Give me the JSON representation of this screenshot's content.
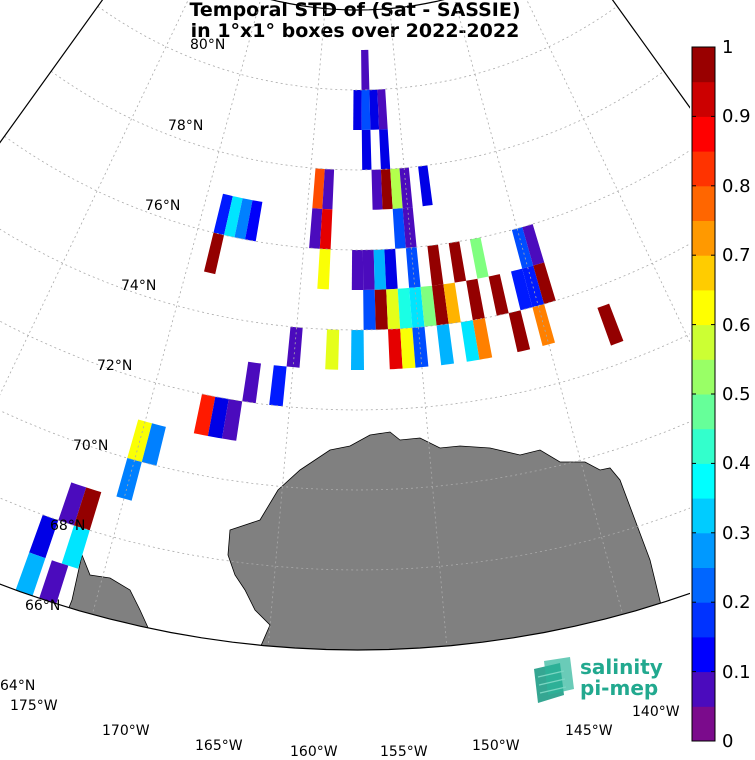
{
  "title": {
    "line1": "Temporal STD of (Sat - SASSIE)",
    "line2": "in 1°x1° boxes over 2022-2022"
  },
  "map": {
    "lat_labels": [
      "80°N",
      "78°N",
      "76°N",
      "74°N",
      "72°N",
      "70°N",
      "68°N",
      "66°N",
      "64°N"
    ],
    "lon_labels": [
      "175°W",
      "170°W",
      "165°W",
      "160°W",
      "155°W",
      "150°W",
      "145°W",
      "140°W"
    ],
    "land_color": "#808080",
    "grid_style": "dotted"
  },
  "colorbar": {
    "ticks": [
      "0",
      "0.1",
      "0.2",
      "0.3",
      "0.4",
      "0.5",
      "0.6",
      "0.7",
      "0.8",
      "0.9",
      "1"
    ],
    "colormap": "jet",
    "levels": 20
  },
  "logo": {
    "line1": "salinity",
    "line2": "pi-mep",
    "color": "#22a98f"
  },
  "boxes": [
    {
      "lat": 78.5,
      "lon": -157,
      "v": 0.05
    },
    {
      "lat": 77.5,
      "lon": -157.5,
      "v": 0.1
    },
    {
      "lat": 77.5,
      "lon": -157,
      "v": 0.2
    },
    {
      "lat": 77.5,
      "lon": -156.5,
      "v": 0.1
    },
    {
      "lat": 77.5,
      "lon": -156,
      "v": 0.05
    },
    {
      "lat": 76.5,
      "lon": -157,
      "v": 0.1
    },
    {
      "lat": 76.5,
      "lon": -156,
      "v": 0.1
    },
    {
      "lat": 75.5,
      "lon": -159.5,
      "v": 0.8
    },
    {
      "lat": 75.5,
      "lon": -159,
      "v": 0.05
    },
    {
      "lat": 75.5,
      "lon": -156.5,
      "v": 0.05
    },
    {
      "lat": 75.5,
      "lon": -156,
      "v": 0.98
    },
    {
      "lat": 75.5,
      "lon": -155.5,
      "v": 0.55
    },
    {
      "lat": 75.5,
      "lon": -155,
      "v": 0.05
    },
    {
      "lat": 75.5,
      "lon": -154,
      "v": 0.1
    },
    {
      "lat": 74.5,
      "lon": -164,
      "v": 0.15
    },
    {
      "lat": 74.5,
      "lon": -163.5,
      "v": 0.35
    },
    {
      "lat": 74.5,
      "lon": -163,
      "v": 0.25
    },
    {
      "lat": 74.5,
      "lon": -162.5,
      "v": 0.12
    },
    {
      "lat": 74.5,
      "lon": -159.5,
      "v": 0.05
    },
    {
      "lat": 74.5,
      "lon": -159,
      "v": 0.9
    },
    {
      "lat": 74.5,
      "lon": -155.5,
      "v": 0.2
    },
    {
      "lat": 74.5,
      "lon": -155,
      "v": 0.05
    },
    {
      "lat": 73.5,
      "lon": -164,
      "v": 0.98
    },
    {
      "lat": 73.5,
      "lon": -159,
      "v": 0.62
    },
    {
      "lat": 73.5,
      "lon": -157.5,
      "v": 0.05
    },
    {
      "lat": 73.5,
      "lon": -157,
      "v": 0.05
    },
    {
      "lat": 73.5,
      "lon": -156.5,
      "v": 0.3
    },
    {
      "lat": 73.5,
      "lon": -156,
      "v": 0.1
    },
    {
      "lat": 73.5,
      "lon": -155,
      "v": 0.2
    },
    {
      "lat": 73.5,
      "lon": -154,
      "v": 0.98
    },
    {
      "lat": 73.5,
      "lon": -153,
      "v": 0.98
    },
    {
      "lat": 73.5,
      "lon": -152,
      "v": 0.5
    },
    {
      "lat": 73.5,
      "lon": -150,
      "v": 0.2
    },
    {
      "lat": 73.5,
      "lon": -149.5,
      "v": 0.05
    },
    {
      "lat": 72.5,
      "lon": -157,
      "v": 0.2
    },
    {
      "lat": 72.5,
      "lon": -156.5,
      "v": 0.98
    },
    {
      "lat": 72.5,
      "lon": -156,
      "v": 0.6
    },
    {
      "lat": 72.5,
      "lon": -155.5,
      "v": 0.4
    },
    {
      "lat": 72.5,
      "lon": -155,
      "v": 0.35
    },
    {
      "lat": 72.5,
      "lon": -154.5,
      "v": 0.5
    },
    {
      "lat": 72.5,
      "lon": -154,
      "v": 0.98
    },
    {
      "lat": 72.5,
      "lon": -153.5,
      "v": 0.7
    },
    {
      "lat": 72.5,
      "lon": -152.5,
      "v": 0.98
    },
    {
      "lat": 72.5,
      "lon": -151.5,
      "v": 0.98
    },
    {
      "lat": 72.5,
      "lon": -150.5,
      "v": 0.15
    },
    {
      "lat": 72.5,
      "lon": -150,
      "v": 0.15
    },
    {
      "lat": 72.5,
      "lon": -149.5,
      "v": 0.98
    },
    {
      "lat": 71.5,
      "lon": -160,
      "v": 0.05
    },
    {
      "lat": 71.5,
      "lon": -158.5,
      "v": 0.6
    },
    {
      "lat": 71.5,
      "lon": -157.5,
      "v": 0.3
    },
    {
      "lat": 71.5,
      "lon": -156,
      "v": 0.9
    },
    {
      "lat": 71.5,
      "lon": -155.5,
      "v": 0.62
    },
    {
      "lat": 71.5,
      "lon": -155,
      "v": 0.2
    },
    {
      "lat": 71.5,
      "lon": -154,
      "v": 0.3
    },
    {
      "lat": 71.5,
      "lon": -153,
      "v": 0.35
    },
    {
      "lat": 71.5,
      "lon": -152.5,
      "v": 0.75
    },
    {
      "lat": 71.5,
      "lon": -151,
      "v": 0.98
    },
    {
      "lat": 71.5,
      "lon": -150,
      "v": 0.75
    },
    {
      "lat": 70.5,
      "lon": -161.5,
      "v": 0.05
    },
    {
      "lat": 70.5,
      "lon": -160.5,
      "v": 0.15
    },
    {
      "lat": 71,
      "lon": -147.5,
      "v": 0.98
    },
    {
      "lat": 69.5,
      "lon": -163,
      "v": 0.85
    },
    {
      "lat": 69.5,
      "lon": -162.5,
      "v": 0.1
    },
    {
      "lat": 69.5,
      "lon": -162,
      "v": 0.05
    },
    {
      "lat": 68.5,
      "lon": -165,
      "v": 0.62
    },
    {
      "lat": 68.5,
      "lon": -164.5,
      "v": 0.25
    },
    {
      "lat": 67.5,
      "lon": -165,
      "v": 0.25
    },
    {
      "lat": 66.5,
      "lon": -166.5,
      "v": 0.05
    },
    {
      "lat": 66.5,
      "lon": -166,
      "v": 0.98
    },
    {
      "lat": 65.5,
      "lon": -167,
      "v": 0.1
    },
    {
      "lat": 65.5,
      "lon": -166,
      "v": 0.35
    },
    {
      "lat": 64.5,
      "lon": -167,
      "v": 0.3
    },
    {
      "lat": 64.5,
      "lon": -166.3,
      "v": 0.05
    }
  ]
}
